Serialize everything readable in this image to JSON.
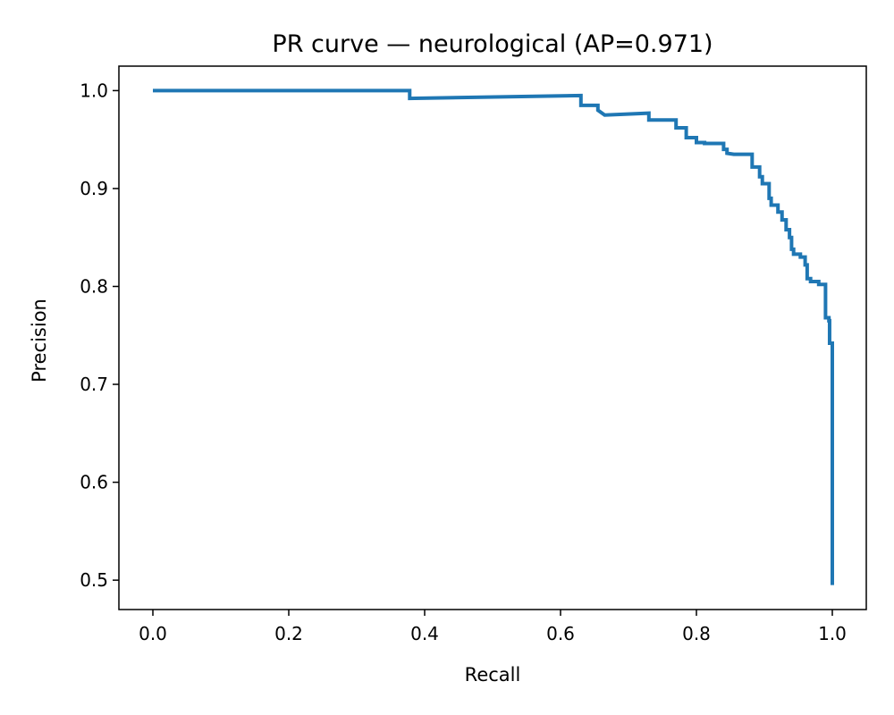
{
  "chart_data": {
    "type": "line",
    "title": "PR curve — neurological (AP=0.971)",
    "xlabel": "Recall",
    "ylabel": "Precision",
    "xlim": [
      -0.05,
      1.05
    ],
    "ylim": [
      0.47,
      1.025
    ],
    "xticks": [
      0.0,
      0.2,
      0.4,
      0.6,
      0.8,
      1.0
    ],
    "xtick_labels": [
      "0.0",
      "0.2",
      "0.4",
      "0.6",
      "0.8",
      "1.0"
    ],
    "yticks": [
      0.5,
      0.6,
      0.7,
      0.8,
      0.9,
      1.0
    ],
    "ytick_labels": [
      "0.5",
      "0.6",
      "0.7",
      "0.8",
      "0.9",
      "1.0"
    ],
    "grid": false,
    "series": [
      {
        "color": "#1f77b4",
        "step": true,
        "x": [
          0.0,
          0.378,
          0.378,
          0.63,
          0.63,
          0.655,
          0.655,
          0.665,
          0.665,
          0.73,
          0.73,
          0.77,
          0.77,
          0.785,
          0.785,
          0.8,
          0.8,
          0.812,
          0.812,
          0.84,
          0.84,
          0.845,
          0.845,
          0.855,
          0.855,
          0.882,
          0.882,
          0.893,
          0.893,
          0.897,
          0.897,
          0.907,
          0.907,
          0.91,
          0.91,
          0.92,
          0.92,
          0.926,
          0.926,
          0.932,
          0.932,
          0.937,
          0.937,
          0.94,
          0.94,
          0.943,
          0.943,
          0.953,
          0.953,
          0.96,
          0.96,
          0.963,
          0.963,
          0.968,
          0.968,
          0.98,
          0.98,
          0.99,
          0.99,
          0.995,
          0.995,
          0.996,
          0.996,
          1.0,
          1.0
        ],
        "y": [
          1.0,
          1.0,
          0.992,
          0.995,
          0.985,
          0.985,
          0.98,
          0.975,
          0.975,
          0.977,
          0.97,
          0.97,
          0.962,
          0.962,
          0.952,
          0.952,
          0.947,
          0.947,
          0.946,
          0.946,
          0.94,
          0.94,
          0.936,
          0.935,
          0.935,
          0.935,
          0.922,
          0.922,
          0.912,
          0.912,
          0.905,
          0.905,
          0.89,
          0.89,
          0.883,
          0.883,
          0.876,
          0.876,
          0.868,
          0.868,
          0.858,
          0.858,
          0.85,
          0.85,
          0.838,
          0.838,
          0.833,
          0.833,
          0.83,
          0.83,
          0.822,
          0.822,
          0.808,
          0.808,
          0.805,
          0.805,
          0.802,
          0.802,
          0.768,
          0.768,
          0.765,
          0.765,
          0.742,
          0.742,
          0.495
        ]
      }
    ]
  }
}
